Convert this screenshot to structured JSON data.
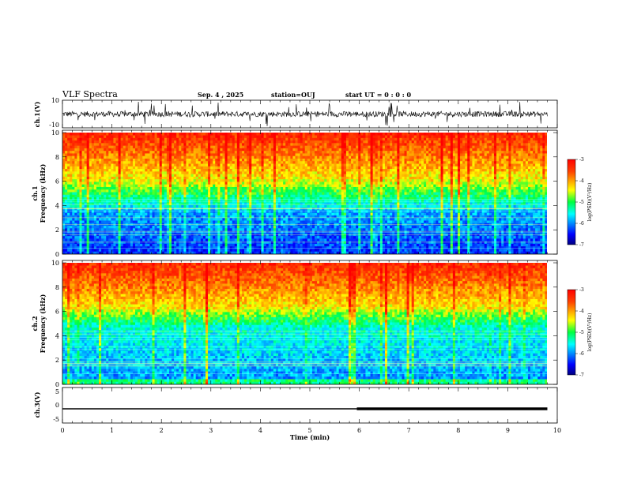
{
  "header": {
    "title": "VLF Spectra",
    "date": "Sep. 4 , 2025",
    "station": "station=OUJ",
    "start_ut": "start  UT =  0 : 0  : 0"
  },
  "chart_data": [
    {
      "type": "line",
      "name": "ch.1 waveform",
      "ylabel": "ch.1(V)",
      "ylim": [
        -10,
        10
      ],
      "yticks": [
        "10",
        "-10"
      ],
      "xlim": [
        0,
        10
      ],
      "baseline": 0
    },
    {
      "type": "heatmap",
      "ylabel_top": "ch.1",
      "ylabel": "Frequency  (kHz)",
      "ylim": [
        0,
        10
      ],
      "yticks": [
        "0",
        "2",
        "4",
        "6",
        "8",
        "10"
      ],
      "xlim": [
        0,
        9.8
      ],
      "colorbar": {
        "label": "log(PSD)(V²/Hz)",
        "range": [
          -7,
          -3
        ],
        "ticks": [
          "-3",
          "-4",
          "-5",
          "-6",
          "-7"
        ]
      }
    },
    {
      "type": "heatmap",
      "ylabel_top": "ch.2",
      "ylabel": "Frequency  (kHz)",
      "ylim": [
        0,
        10
      ],
      "yticks": [
        "0",
        "2",
        "4",
        "6",
        "8",
        "10"
      ],
      "xlim": [
        0,
        9.8
      ],
      "colorbar": {
        "label": "log(PSD)(V²/Hz)",
        "range": [
          -7,
          -3
        ],
        "ticks": [
          "-3",
          "-4",
          "-5",
          "-6",
          "-7"
        ]
      }
    },
    {
      "type": "line",
      "name": "ch.3 level",
      "ylabel": "ch.3(V)",
      "ylim": [
        -5,
        5
      ],
      "yticks": [
        "5",
        "0",
        "-5"
      ],
      "x": [
        0,
        5.95,
        5.95,
        9.8
      ],
      "y": [
        -1.0,
        -1.0,
        -1.0,
        -1.0
      ],
      "thick_from": 5.95
    }
  ],
  "xaxis": {
    "label": "Time  (min)",
    "ticks": [
      "0",
      "1",
      "2",
      "3",
      "4",
      "5",
      "6",
      "7",
      "8",
      "9",
      "10"
    ],
    "range": [
      0,
      10
    ]
  }
}
